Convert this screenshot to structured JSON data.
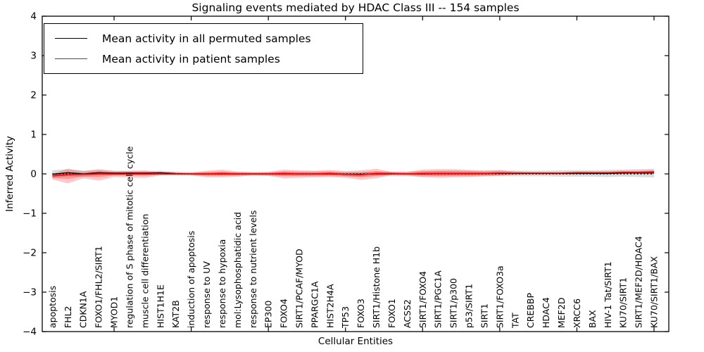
{
  "chart_data": {
    "type": "line",
    "title": "Signaling events mediated by HDAC Class III -- 154 samples",
    "xlabel": "Cellular Entities",
    "ylabel": "Inferred Activity",
    "ylim": [
      -4,
      4
    ],
    "yticks": [
      4,
      3,
      2,
      1,
      0,
      -1,
      -2,
      -3,
      -4
    ],
    "xtick_indices": [
      4,
      9,
      14,
      19,
      24,
      29,
      34,
      39
    ],
    "grid": false,
    "legend_position": "upper left",
    "zero_line": {
      "y": 0,
      "style": "dotted",
      "color": "#000000"
    },
    "categories": [
      "apoptosis",
      "FHL2",
      "CDKN1A",
      "FOXO1/FHL2/SIRT1",
      "MYOD1",
      "regulation of S phase of mitotic cell cycle",
      "muscle cell differentiation",
      "HIST1H1E",
      "KAT2B",
      "induction of apoptosis",
      "response to UV",
      "response to hypoxia",
      "mol:Lysophosphatidic acid",
      "response to nutrient levels",
      "EP300",
      "FOXO4",
      "SIRT1/PCAF/MYOD",
      "PPARGC1A",
      "HIST2H4A",
      "TP53",
      "FOXO3",
      "SIRT1/Histone H1b",
      "FOXO1",
      "ACSS2",
      "SIRT1/FOXO4",
      "SIRT1/PGC1A",
      "SIRT1/p300",
      "p53/SIRT1",
      "SIRT1",
      "SIRT1/FOXO3a",
      "TAT",
      "CREBBP",
      "HDAC4",
      "MEF2D",
      "XRCC6",
      "BAX",
      "HIV-1 Tat/SIRT1",
      "KU70/SIRT1",
      "SIRT1/MEF2D/HDAC4",
      "KU70/SIRT1/BAX"
    ],
    "series": [
      {
        "name": "Mean activity in all permuted samples",
        "color": "#000000",
        "style": "solid",
        "values": [
          -0.01,
          0.03,
          0.0,
          0.03,
          0.02,
          0.02,
          0.02,
          0.03,
          0.01,
          0.0,
          0.0,
          0.0,
          0.0,
          0.0,
          0.0,
          0.0,
          0.0,
          0.0,
          0.0,
          -0.01,
          -0.01,
          0.0,
          0.0,
          0.0,
          0.0,
          0.01,
          0.01,
          0.01,
          0.01,
          0.01,
          0.01,
          0.01,
          0.01,
          0.01,
          0.01,
          0.01,
          0.01,
          0.02,
          0.02,
          0.02
        ]
      },
      {
        "name": "Mean activity in patient samples",
        "color": "#ff0000",
        "style": "solid",
        "values": [
          -0.05,
          -0.02,
          -0.01,
          0.0,
          0.0,
          0.0,
          0.0,
          0.0,
          0.0,
          0.0,
          0.0,
          0.01,
          0.0,
          0.0,
          0.0,
          0.01,
          0.0,
          0.0,
          0.01,
          -0.01,
          -0.02,
          0.01,
          0.01,
          0.0,
          0.01,
          0.01,
          0.01,
          0.01,
          0.01,
          0.02,
          0.02,
          0.02,
          0.02,
          0.02,
          0.03,
          0.03,
          0.03,
          0.04,
          0.04,
          0.05
        ]
      }
    ],
    "bands": [
      {
        "name": "permuted-sample-range",
        "color": "#999999",
        "opacity": 0.35,
        "center_series": 0,
        "upper_offsets": [
          0.1,
          0.09,
          0.08,
          0.07,
          0.06,
          0.05,
          0.05,
          0.05,
          0.05,
          0.05,
          0.05,
          0.05,
          0.05,
          0.05,
          0.05,
          0.06,
          0.06,
          0.06,
          0.06,
          0.06,
          0.06,
          0.06,
          0.06,
          0.06,
          0.07,
          0.07,
          0.07,
          0.07,
          0.07,
          0.07,
          0.07,
          0.07,
          0.07,
          0.08,
          0.08,
          0.08,
          0.09,
          0.09,
          0.1,
          0.11
        ],
        "lower_offsets": [
          0.1,
          0.09,
          0.08,
          0.07,
          0.06,
          0.05,
          0.05,
          0.05,
          0.05,
          0.05,
          0.05,
          0.05,
          0.05,
          0.05,
          0.05,
          0.06,
          0.06,
          0.06,
          0.06,
          0.06,
          0.06,
          0.06,
          0.06,
          0.06,
          0.07,
          0.07,
          0.07,
          0.07,
          0.07,
          0.07,
          0.07,
          0.07,
          0.07,
          0.08,
          0.08,
          0.08,
          0.09,
          0.09,
          0.1,
          0.11
        ]
      },
      {
        "name": "patient-sample-range-outer",
        "color": "#ff0000",
        "opacity": 0.22,
        "center_series": 1,
        "upper_offsets": [
          0.05,
          0.15,
          0.08,
          0.12,
          0.07,
          0.08,
          0.09,
          0.04,
          0.03,
          0.03,
          0.08,
          0.1,
          0.06,
          0.04,
          0.05,
          0.1,
          0.09,
          0.08,
          0.09,
          0.08,
          0.11,
          0.12,
          0.04,
          0.05,
          0.1,
          0.11,
          0.11,
          0.09,
          0.07,
          0.08,
          0.04,
          0.03,
          0.03,
          0.03,
          0.03,
          0.03,
          0.03,
          0.04,
          0.04,
          0.05
        ],
        "lower_offsets": [
          0.09,
          0.22,
          0.1,
          0.17,
          0.08,
          0.09,
          0.1,
          0.04,
          0.03,
          0.03,
          0.09,
          0.1,
          0.07,
          0.04,
          0.05,
          0.12,
          0.1,
          0.09,
          0.09,
          0.09,
          0.13,
          0.12,
          0.04,
          0.04,
          0.09,
          0.11,
          0.1,
          0.09,
          0.07,
          0.07,
          0.04,
          0.03,
          0.03,
          0.03,
          0.03,
          0.03,
          0.03,
          0.03,
          0.03,
          0.03
        ]
      },
      {
        "name": "patient-sample-range-inner",
        "color": "#ff0000",
        "opacity": 0.25,
        "center_series": 1,
        "scale_of_band": 1,
        "half_scale": 0.5
      }
    ]
  }
}
